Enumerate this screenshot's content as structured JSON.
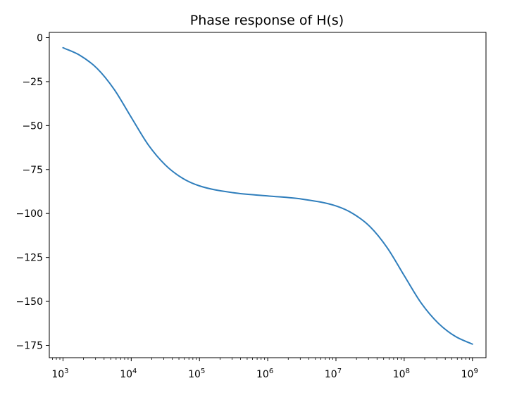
{
  "chart_data": {
    "type": "line",
    "title": "Phase response of H(s)",
    "xlabel": "",
    "ylabel": "",
    "xscale": "log",
    "xlim": [
      630,
      1580000000
    ],
    "ylim": [
      -182,
      3
    ],
    "grid": false,
    "x_tick_base": "10",
    "x_tick_exponents": [
      "3",
      "4",
      "5",
      "6",
      "7",
      "8",
      "9"
    ],
    "y_ticks": [
      "0",
      "−25",
      "−50",
      "−75",
      "−100",
      "−125",
      "−150",
      "−175"
    ],
    "series": [
      {
        "color": "#2f7ebc",
        "x": [
          1000,
          1780,
          3160,
          5620,
          10000,
          17800,
          31600,
          56200,
          100000,
          316000,
          1000000,
          3160000,
          10000000,
          17800000,
          31600000,
          56200000,
          100000000,
          178000000,
          316000000,
          562000000,
          1000000000
        ],
        "y": [
          -5.7,
          -10.1,
          -17.5,
          -29.4,
          -45.3,
          -61.0,
          -72.4,
          -79.9,
          -84.3,
          -88.2,
          -90.0,
          -91.8,
          -95.7,
          -100.1,
          -107.5,
          -119.4,
          -135.3,
          -151.0,
          -162.4,
          -169.9,
          -174.3
        ]
      }
    ]
  }
}
